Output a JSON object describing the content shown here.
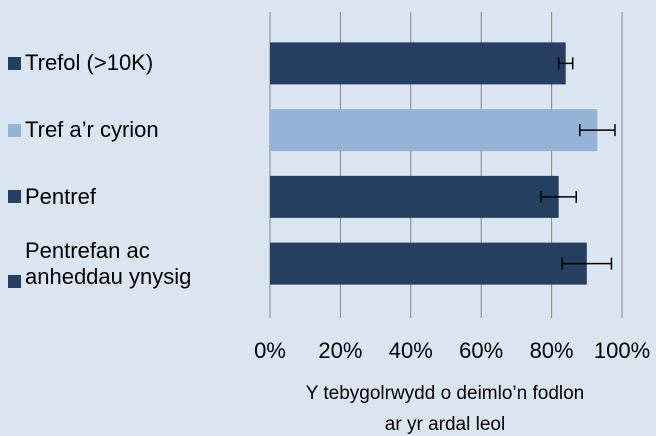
{
  "chart_data": {
    "type": "bar",
    "orientation": "horizontal",
    "categories": [
      "Trefol (>10K)",
      "Tref a’r cyrion",
      "Pentref",
      "Pentrefan ac anheddau ynysig"
    ],
    "values": [
      84,
      93,
      82,
      90
    ],
    "errors": [
      2,
      5,
      5,
      7
    ],
    "colors": [
      "#243f60",
      "#95b3d7",
      "#243f60",
      "#243f60"
    ],
    "xlim": [
      0,
      100
    ],
    "xticks": [
      {
        "value": 0,
        "label": "0%"
      },
      {
        "value": 20,
        "label": "20%"
      },
      {
        "value": 40,
        "label": "40%"
      },
      {
        "value": 60,
        "label": "60%"
      },
      {
        "value": 80,
        "label": "80%"
      },
      {
        "value": 100,
        "label": "100%"
      }
    ],
    "xlabel": [
      "Y tebygolrwydd o deimlo’n fodlon",
      "ar yr ardal leol"
    ],
    "grid": true
  }
}
